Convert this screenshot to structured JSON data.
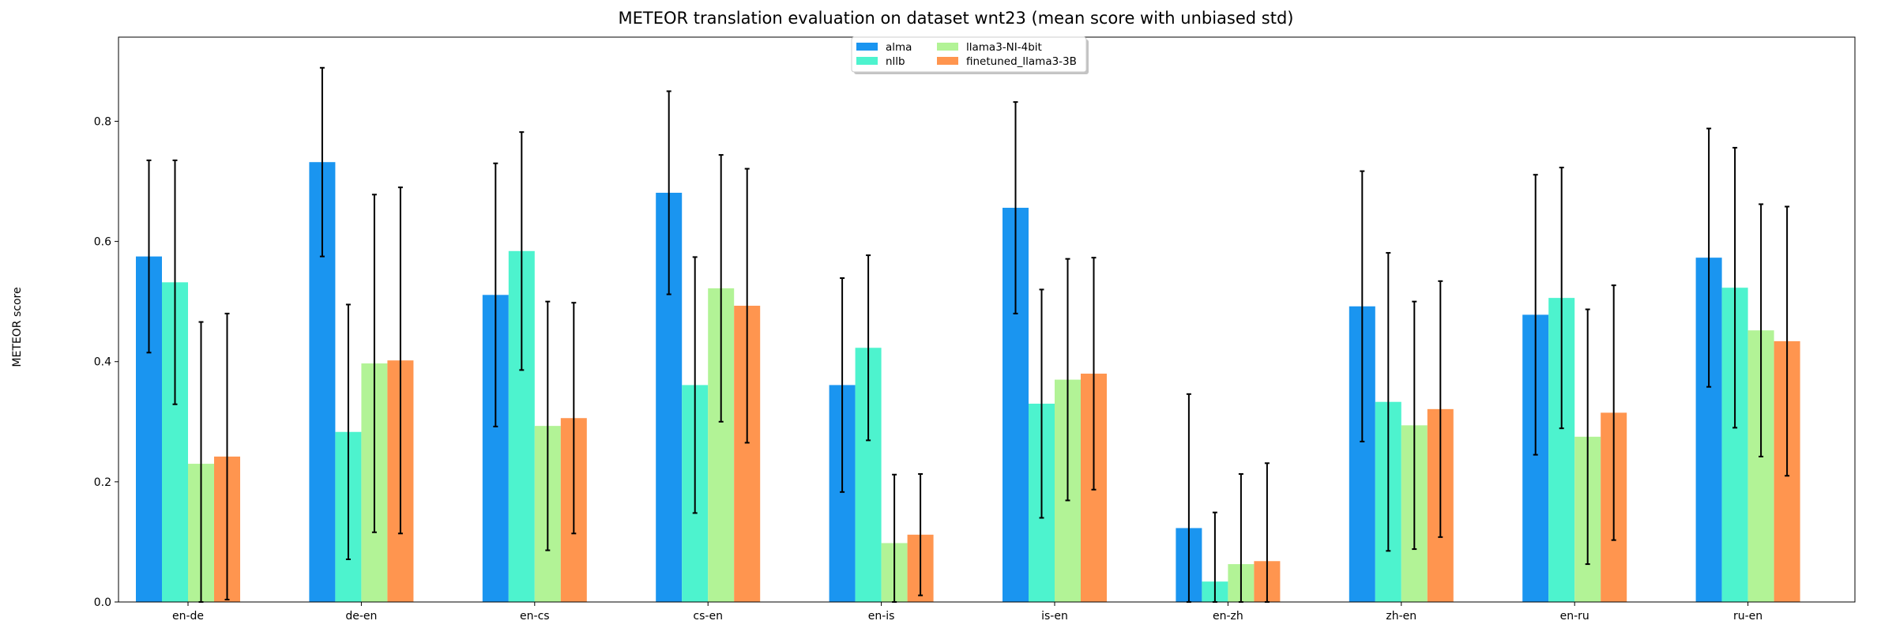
{
  "chart_data": {
    "type": "bar",
    "title": "METEOR translation evaluation on dataset wnt23 (mean score with unbiased std)",
    "xlabel": "",
    "ylabel": "METEOR score",
    "ylim": [
      0,
      0.94
    ],
    "yticks": [
      0.0,
      0.2,
      0.4,
      0.6,
      0.8
    ],
    "ytick_labels": [
      "0.0",
      "0.2",
      "0.4",
      "0.6",
      "0.8"
    ],
    "grid": false,
    "legend_position": "top-center",
    "legend_columns": 2,
    "categories": [
      "en-de",
      "de-en",
      "en-cs",
      "cs-en",
      "en-is",
      "is-en",
      "en-zh",
      "zh-en",
      "en-ru",
      "ru-en"
    ],
    "series": [
      {
        "name": "alma",
        "color": "#1a95f0",
        "values": [
          0.575,
          0.732,
          0.511,
          0.681,
          0.361,
          0.656,
          0.123,
          0.492,
          0.478,
          0.573
        ],
        "std": [
          0.16,
          0.157,
          0.219,
          0.169,
          0.178,
          0.176,
          0.223,
          0.225,
          0.233,
          0.215
        ]
      },
      {
        "name": "nllb",
        "color": "#4df3ce",
        "values": [
          0.532,
          0.283,
          0.584,
          0.361,
          0.423,
          0.33,
          0.034,
          0.333,
          0.506,
          0.523
        ],
        "std": [
          0.203,
          0.212,
          0.198,
          0.213,
          0.154,
          0.19,
          0.115,
          0.248,
          0.217,
          0.233
        ]
      },
      {
        "name": "llama3-NI-4bit",
        "color": "#b2f396",
        "values": [
          0.23,
          0.397,
          0.293,
          0.522,
          0.098,
          0.37,
          0.063,
          0.294,
          0.275,
          0.452
        ],
        "std": [
          0.236,
          0.281,
          0.207,
          0.222,
          0.114,
          0.201,
          0.15,
          0.206,
          0.212,
          0.21
        ]
      },
      {
        "name": "finetuned_llama3-3B",
        "color": "#ff954f",
        "values": [
          0.242,
          0.402,
          0.306,
          0.493,
          0.112,
          0.38,
          0.068,
          0.321,
          0.315,
          0.434
        ],
        "std": [
          0.238,
          0.288,
          0.192,
          0.228,
          0.101,
          0.193,
          0.163,
          0.213,
          0.212,
          0.224
        ]
      }
    ]
  }
}
